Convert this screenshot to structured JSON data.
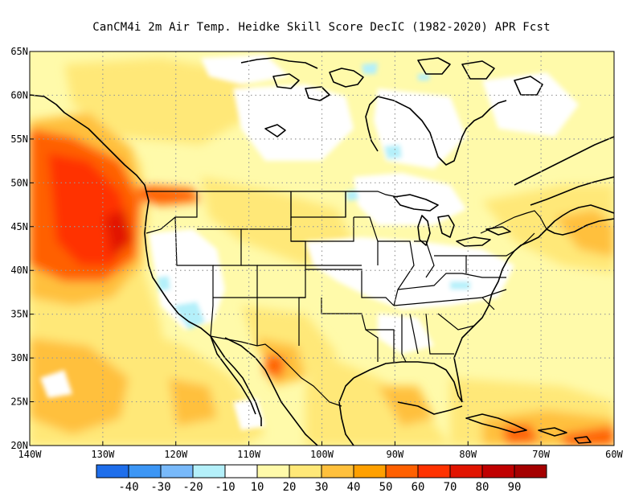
{
  "title": "CanCM4i  2m Air Temp. Heidke Skill Score DecIC (1982-2020) APR Fcst",
  "map": {
    "lon_range": [
      -140,
      -60
    ],
    "lat_range": [
      20,
      65
    ],
    "lon_ticks": [
      {
        "value": -140,
        "label": "140W"
      },
      {
        "value": -130,
        "label": "130W"
      },
      {
        "value": -120,
        "label": "120W"
      },
      {
        "value": -110,
        "label": "110W"
      },
      {
        "value": -100,
        "label": "100W"
      },
      {
        "value": -90,
        "label": "90W"
      },
      {
        "value": -80,
        "label": "80W"
      },
      {
        "value": -70,
        "label": "70W"
      },
      {
        "value": -60,
        "label": "60W"
      }
    ],
    "lat_ticks": [
      {
        "value": 20,
        "label": "20N"
      },
      {
        "value": 25,
        "label": "25N"
      },
      {
        "value": 30,
        "label": "30N"
      },
      {
        "value": 35,
        "label": "35N"
      },
      {
        "value": 40,
        "label": "40N"
      },
      {
        "value": 45,
        "label": "45N"
      },
      {
        "value": 50,
        "label": "50N"
      },
      {
        "value": 55,
        "label": "55N"
      },
      {
        "value": 60,
        "label": "60N"
      },
      {
        "value": 65,
        "label": "65N"
      }
    ],
    "grid": "dotted"
  },
  "colorbar": {
    "colors": [
      "#1e6eeb",
      "#3c96f5",
      "#78b9fa",
      "#b4f0fa",
      "#ffffff",
      "#fffaaa",
      "#ffe878",
      "#ffc03c",
      "#ffa000",
      "#ff6000",
      "#ff3200",
      "#e11400",
      "#c00000",
      "#a50000"
    ],
    "labels": [
      "-40",
      "-30",
      "-20",
      "-10",
      "10",
      "20",
      "30",
      "40",
      "50",
      "60",
      "70",
      "80",
      "90"
    ]
  }
}
